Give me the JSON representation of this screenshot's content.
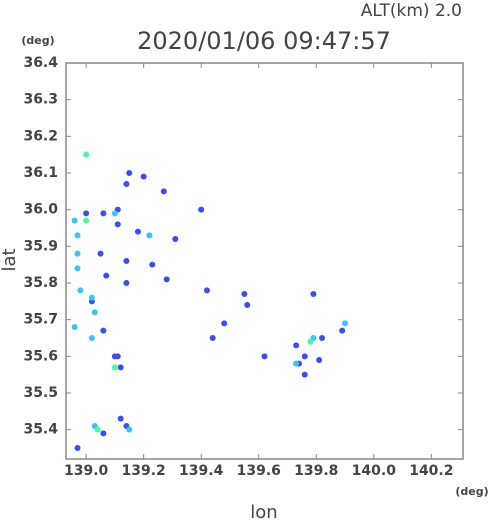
{
  "chart_data": {
    "type": "scatter",
    "title": "2020/01/06 09:47:57",
    "subtitle": "ALT(km) 2.0",
    "x_label": "lon",
    "y_label": "lat",
    "x_unit": "(deg)",
    "y_unit": "(deg)",
    "xlim": [
      138.93,
      140.31
    ],
    "ylim": [
      35.32,
      36.4
    ],
    "xticks": [
      {
        "value": 139.0,
        "label": "139.0"
      },
      139.2,
      139.4,
      139.6,
      139.8,
      {
        "value": 140.0,
        "label": "140.0"
      },
      140.2
    ],
    "yticks": [
      35.4,
      35.5,
      35.6,
      35.7,
      35.8,
      35.9,
      {
        "value": 36.0,
        "label": "36.0"
      },
      36.1,
      36.2,
      36.3,
      36.4
    ],
    "series": [
      {
        "color": "#3a4cff",
        "x": [
          139.0,
          139.06,
          139.11,
          139.11,
          139.15,
          139.14,
          139.2,
          139.27,
          139.05,
          139.14,
          139.18,
          139.23,
          139.14,
          139.07,
          139.02,
          139.06,
          139.1,
          139.11,
          139.12,
          139.12,
          139.14,
          139.06,
          138.97,
          139.28,
          139.31,
          139.42,
          139.44,
          139.48,
          139.55,
          139.56,
          139.62,
          139.73,
          139.76,
          139.74,
          139.79,
          139.82,
          139.81,
          139.89,
          139.76,
          139.4
        ],
        "y": [
          35.99,
          35.99,
          36.0,
          35.96,
          36.1,
          36.07,
          36.09,
          36.05,
          35.88,
          35.86,
          35.94,
          35.85,
          35.8,
          35.82,
          35.75,
          35.67,
          35.6,
          35.6,
          35.57,
          35.43,
          35.41,
          35.39,
          35.35,
          35.81,
          35.92,
          35.78,
          35.65,
          35.69,
          35.77,
          35.74,
          35.6,
          35.63,
          35.6,
          35.58,
          35.77,
          35.65,
          35.59,
          35.67,
          35.55,
          36.0
        ]
      },
      {
        "color": "#38c4ff",
        "x": [
          138.96,
          138.97,
          138.97,
          138.97,
          138.98,
          139.02,
          139.03,
          139.02,
          138.96,
          139.22,
          139.73,
          139.79,
          139.9,
          139.15,
          139.03,
          139.1
        ],
        "y": [
          35.97,
          35.93,
          35.88,
          35.84,
          35.78,
          35.76,
          35.72,
          35.65,
          35.68,
          35.93,
          35.58,
          35.65,
          35.69,
          35.4,
          35.41,
          35.99
        ]
      },
      {
        "color": "#44ff99",
        "x": [
          139.0,
          139.0,
          139.04,
          139.78,
          139.1
        ],
        "y": [
          36.15,
          35.97,
          35.4,
          35.64,
          35.57
        ]
      }
    ]
  }
}
